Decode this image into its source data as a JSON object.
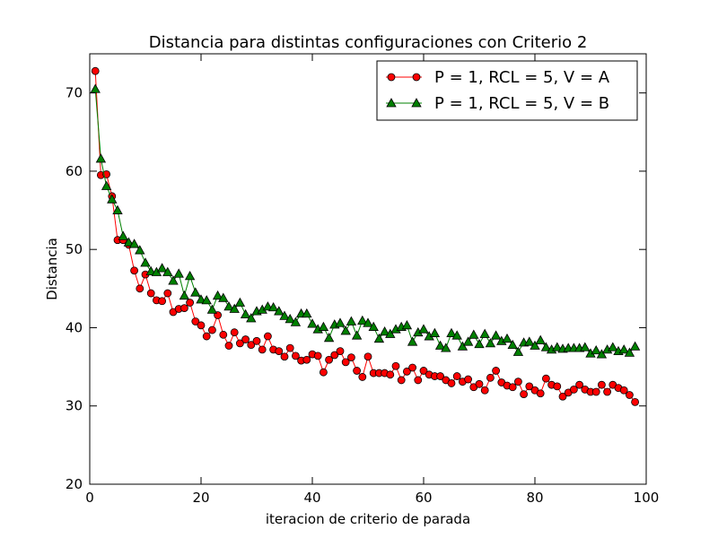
{
  "chart_data": {
    "type": "line",
    "title": "Distancia para distintas configuraciones con Criterio 2",
    "xlabel": "iteracion de criterio de parada",
    "ylabel": "Distancia",
    "xlim": [
      0,
      100
    ],
    "ylim": [
      20,
      75
    ],
    "xticks": [
      0,
      20,
      40,
      60,
      80,
      100
    ],
    "yticks": [
      20,
      30,
      40,
      50,
      60,
      70
    ],
    "grid": false,
    "legend_position": "top-right",
    "x": [
      1,
      2,
      3,
      4,
      5,
      6,
      7,
      8,
      9,
      10,
      11,
      12,
      13,
      14,
      15,
      16,
      17,
      18,
      19,
      20,
      21,
      22,
      23,
      24,
      25,
      26,
      27,
      28,
      29,
      30,
      31,
      32,
      33,
      34,
      35,
      36,
      37,
      38,
      39,
      40,
      41,
      42,
      43,
      44,
      45,
      46,
      47,
      48,
      49,
      50,
      51,
      52,
      53,
      54,
      55,
      56,
      57,
      58,
      59,
      60,
      61,
      62,
      63,
      64,
      65,
      66,
      67,
      68,
      69,
      70,
      71,
      72,
      73,
      74,
      75,
      76,
      77,
      78,
      79,
      80,
      81,
      82,
      83,
      84,
      85,
      86,
      87,
      88,
      89,
      90,
      91,
      92,
      93,
      94,
      95,
      96,
      97,
      98
    ],
    "series": [
      {
        "name": "P = 1, RCL = 5, V = A",
        "color": "#ff0000",
        "marker": "circle",
        "values": [
          72.8,
          59.5,
          59.6,
          56.8,
          51.2,
          51.2,
          50.6,
          47.3,
          45.0,
          46.8,
          44.4,
          43.5,
          43.4,
          44.4,
          42.0,
          42.4,
          42.5,
          43.2,
          40.8,
          40.3,
          38.9,
          39.7,
          41.6,
          39.1,
          37.7,
          39.4,
          38.0,
          38.5,
          37.8,
          38.3,
          37.2,
          38.9,
          37.2,
          37.0,
          36.3,
          37.4,
          36.4,
          35.8,
          35.9,
          36.6,
          36.4,
          34.3,
          35.9,
          36.5,
          37.0,
          35.6,
          36.2,
          34.5,
          33.7,
          36.3,
          34.2,
          34.2,
          34.2,
          34.0,
          35.1,
          33.3,
          34.4,
          34.9,
          33.3,
          34.5,
          34.0,
          33.8,
          33.8,
          33.3,
          32.9,
          33.8,
          33.1,
          33.4,
          32.4,
          32.8,
          32.0,
          33.6,
          34.5,
          33.0,
          32.6,
          32.4,
          33.1,
          31.5,
          32.5,
          32.0,
          31.6,
          33.5,
          32.7,
          32.5,
          31.2,
          31.7,
          32.1,
          32.7,
          32.1,
          31.8,
          31.8,
          32.7,
          31.8,
          32.7,
          32.3,
          32.0,
          31.4,
          30.5
        ]
      },
      {
        "name": "P = 1, RCL = 5, V = B",
        "color": "#008000",
        "marker": "triangle",
        "values": [
          70.5,
          61.6,
          58.1,
          56.4,
          55.0,
          51.7,
          50.9,
          50.7,
          49.9,
          48.3,
          47.2,
          47.1,
          47.6,
          47.1,
          46.0,
          46.9,
          44.1,
          46.6,
          44.5,
          43.6,
          43.5,
          42.3,
          44.1,
          43.8,
          42.7,
          42.4,
          43.2,
          41.7,
          41.2,
          42.1,
          42.3,
          42.7,
          42.6,
          42.1,
          41.5,
          41.1,
          40.7,
          41.8,
          41.8,
          40.5,
          39.8,
          40.1,
          38.7,
          40.4,
          40.6,
          39.6,
          40.8,
          39.0,
          40.9,
          40.6,
          40.1,
          38.6,
          39.5,
          39.2,
          39.8,
          40.1,
          40.3,
          38.2,
          39.4,
          39.8,
          38.9,
          39.3,
          37.7,
          37.4,
          39.3,
          39.0,
          37.6,
          38.2,
          39.1,
          37.9,
          39.2,
          38.0,
          39.0,
          38.3,
          38.6,
          37.8,
          36.9,
          38.1,
          38.2,
          37.7,
          38.4,
          37.5,
          37.2,
          37.5,
          37.3,
          37.4,
          37.4,
          37.4,
          37.5,
          36.7,
          37.1,
          36.6,
          37.2,
          37.5,
          37.0,
          37.2,
          36.8,
          37.6
        ]
      }
    ]
  }
}
